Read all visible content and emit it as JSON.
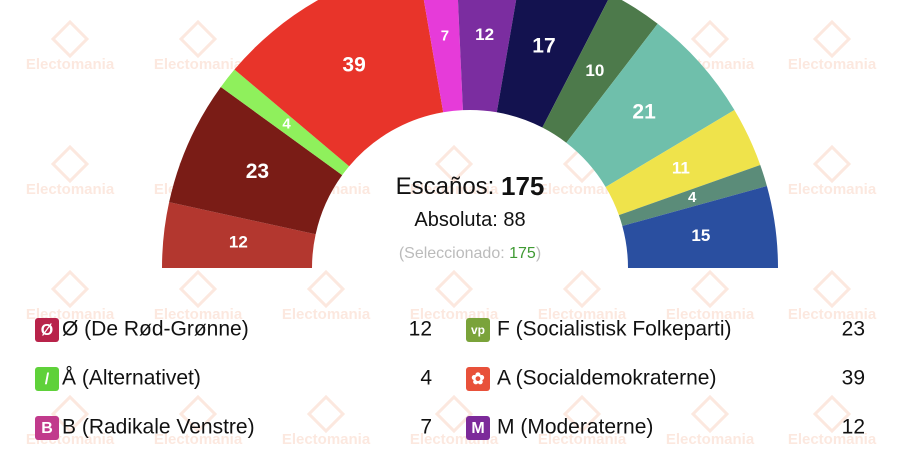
{
  "watermark": "Electomania",
  "chart_data": {
    "type": "parliament",
    "values": [
      12,
      23,
      4,
      39,
      7,
      12,
      17,
      10,
      21,
      11,
      4,
      15
    ],
    "colors": [
      "#b3372f",
      "#7a1c16",
      "#8ff05c",
      "#e8342a",
      "#e63bd9",
      "#7b2da0",
      "#13124f",
      "#4d7a4b",
      "#6fbfab",
      "#efe34b",
      "#5b8c79",
      "#2a4fa0"
    ],
    "seats_label": "Escaños:",
    "seats": 175,
    "majority_label": "Absoluta:",
    "majority": 88,
    "selected_prefix": "(Seleccionado:",
    "selected": 175,
    "selected_suffix": ")"
  },
  "legend": [
    {
      "logo": "Ø",
      "color": "#b8234a",
      "name": "Ø (De Rød-Grønne)",
      "seats": 12
    },
    {
      "logo": "vp",
      "color": "#7aa33a",
      "name": "F (Socialistisk Folkeparti)",
      "seats": 23
    },
    {
      "logo": "/",
      "color": "#5fd13a",
      "name": "Å (Alternativet)",
      "seats": 4
    },
    {
      "logo": "✿",
      "color": "#e8513a",
      "name": "A (Socialdemokraterne)",
      "seats": 39
    },
    {
      "logo": "B",
      "color": "#c13a8c",
      "name": "B (Radikale Venstre)",
      "seats": 7
    },
    {
      "logo": "M",
      "color": "#7c2a9a",
      "name": "M (Moderaterne)",
      "seats": 12
    }
  ]
}
